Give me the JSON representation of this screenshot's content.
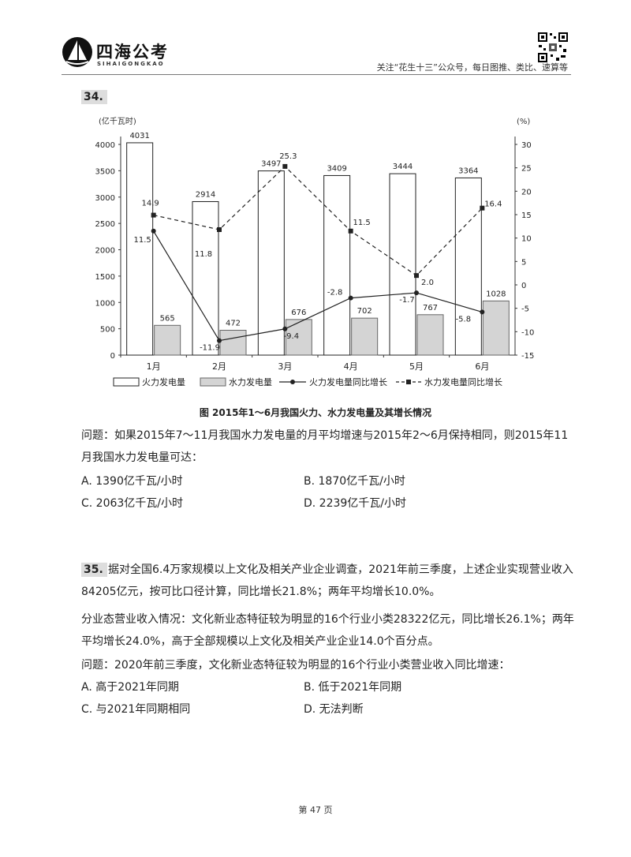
{
  "header": {
    "brand": "四海公考",
    "brand_sub": "SIHAIGONGKAO",
    "note": "关注“花生十三”公众号，每日图推、类比、速算等"
  },
  "q34": {
    "number": "34.",
    "caption": "图 2015年1～6月我国火力、水力发电量及其增长情况",
    "question_line1": "问题：如果2015年7～11月我国水力发电量的月平均增速与2015年2～6月保持相同，则2015年11",
    "question_line2": "月我国水力发电量可达：",
    "options": {
      "A": "A. 1390亿千瓦/小时",
      "B": "B. 1870亿千瓦/小时",
      "C": "C. 2063亿千瓦/小时",
      "D": "D. 2239亿千瓦/小时"
    }
  },
  "chart_data": {
    "type": "bar",
    "title": "2015年1～6月我国火力、水力发电量及其增长情况",
    "categories": [
      "1月",
      "2月",
      "3月",
      "4月",
      "5月",
      "6月"
    ],
    "left_axis": {
      "unit": "(亿千瓦时)",
      "range": [
        0,
        4000
      ],
      "ticks": [
        0,
        500,
        1000,
        1500,
        2000,
        2500,
        3000,
        3500,
        4000
      ]
    },
    "right_axis": {
      "unit": "(%)",
      "range": [
        -15,
        30
      ],
      "ticks": [
        -15,
        -10,
        -5,
        0,
        5,
        10,
        15,
        20,
        25,
        30
      ]
    },
    "series": [
      {
        "name": "火力发电量",
        "kind": "bar",
        "axis": "left",
        "color": "#ffffff",
        "values": [
          4031,
          2914,
          3497,
          3409,
          3444,
          3364
        ],
        "labels": [
          "4031",
          "2914",
          "3497",
          "3409",
          "3444",
          "3364"
        ]
      },
      {
        "name": "水力发电量",
        "kind": "bar",
        "axis": "left",
        "color": "#d4d4d4",
        "values": [
          565,
          472,
          676,
          702,
          767,
          1028
        ],
        "labels": [
          "565",
          "472",
          "676",
          "702",
          "767",
          "1028"
        ]
      },
      {
        "name": "火力发电量同比增长",
        "kind": "line",
        "axis": "right",
        "values": [
          11.5,
          -11.9,
          -9.4,
          -2.8,
          -1.7,
          -5.8
        ],
        "labels": [
          "11.5",
          "-11.9",
          "-9.4",
          "-2.8",
          "-1.7",
          "-5.8"
        ]
      },
      {
        "name": "水力发电量同比增长",
        "kind": "dashed-line",
        "axis": "right",
        "values": [
          14.9,
          11.8,
          25.3,
          11.5,
          2.0,
          16.4
        ],
        "labels": [
          "14.9",
          "11.8",
          "25.3",
          "11.5",
          "2.0",
          "16.4"
        ]
      }
    ],
    "legend": [
      "火力发电量",
      "水力发电量",
      "火力发电量同比增长",
      "水力发电量同比增长"
    ],
    "legend_position": "bottom"
  },
  "q35": {
    "number": "35.",
    "p1_line1": "据对全国6.4万家规模以上文化及相关产业企业调查，2021年前三季度，上述企业实现营业收入",
    "p1_line2": "84205亿元，按可比口径计算，同比增长21.8%；两年平均增长10.0%。",
    "p2_line1": "分业态营业收入情况：文化新业态特征较为明显的16个行业小类28322亿元，同比增长26.1%；两年",
    "p2_line2": "平均增长24.0%，高于全部规模以上文化及相关产业企业14.0个百分点。",
    "question": "问题：2020年前三季度，文化新业态特征较为明显的16个行业小类营业收入同比增速：",
    "options": {
      "A": "A. 高于2021年同期",
      "B": "B. 低于2021年同期",
      "C": "C. 与2021年同期相同",
      "D": "D. 无法判断"
    }
  },
  "footer": {
    "page": "第 47 页"
  }
}
